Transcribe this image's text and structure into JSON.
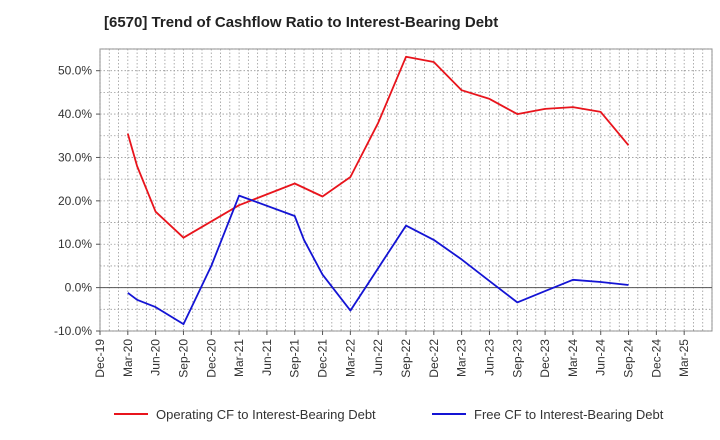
{
  "chart_data": {
    "type": "line",
    "title": "[6570]  Trend of Cashflow Ratio to Interest-Bearing Debt",
    "xlabel": "",
    "ylabel": "",
    "x_tick_labels": [
      "Dec-19",
      "Mar-20",
      "Jun-20",
      "Sep-20",
      "Dec-20",
      "Mar-21",
      "Jun-21",
      "Sep-21",
      "Dec-21",
      "Mar-22",
      "Jun-22",
      "Sep-22",
      "Dec-22",
      "Mar-23",
      "Jun-23",
      "Sep-23",
      "Dec-23",
      "Mar-24",
      "Jun-24",
      "Sep-24",
      "Dec-24",
      "Mar-25"
    ],
    "y_tick_labels": [
      "-10.0%",
      "0.0%",
      "10.0%",
      "20.0%",
      "30.0%",
      "40.0%",
      "50.0%"
    ],
    "ylim": [
      -10,
      55
    ],
    "y_ticks": [
      -10,
      0,
      10,
      20,
      30,
      40,
      50
    ],
    "grid": true,
    "legend_position": "bottom",
    "series": [
      {
        "name": "Operating CF to Interest-Bearing Debt",
        "color": "#e8141c",
        "points": [
          [
            "Mar-20",
            35.5
          ],
          [
            "Apr-20",
            28.0
          ],
          [
            "Jun-20",
            17.5
          ],
          [
            "Sep-20",
            11.5
          ],
          [
            "Mar-21",
            19.0
          ],
          [
            "Sep-21",
            24.0
          ],
          [
            "Dec-21",
            21.0
          ],
          [
            "Mar-22",
            25.5
          ],
          [
            "Jun-22",
            38.0
          ],
          [
            "Sep-22",
            53.2
          ],
          [
            "Dec-22",
            52.0
          ],
          [
            "Mar-23",
            45.5
          ],
          [
            "Jun-23",
            43.5
          ],
          [
            "Sep-23",
            40.0
          ],
          [
            "Dec-23",
            41.2
          ],
          [
            "Mar-24",
            41.6
          ],
          [
            "Jun-24",
            40.5
          ],
          [
            "Sep-24",
            32.8
          ]
        ]
      },
      {
        "name": "Free CF to Interest-Bearing Debt",
        "color": "#1414d4",
        "points": [
          [
            "Mar-20",
            -1.2
          ],
          [
            "Apr-20",
            -2.8
          ],
          [
            "Jun-20",
            -4.5
          ],
          [
            "Sep-20",
            -8.4
          ],
          [
            "Dec-20",
            5.0
          ],
          [
            "Mar-21",
            21.2
          ],
          [
            "Sep-21",
            16.5
          ],
          [
            "Oct-21",
            11.0
          ],
          [
            "Dec-21",
            3.0
          ],
          [
            "Mar-22",
            -5.3
          ],
          [
            "Jun-22",
            4.5
          ],
          [
            "Sep-22",
            14.3
          ],
          [
            "Dec-22",
            11.0
          ],
          [
            "Mar-23",
            6.5
          ],
          [
            "Jun-23",
            1.5
          ],
          [
            "Sep-23",
            -3.4
          ],
          [
            "Dec-23",
            -0.8
          ],
          [
            "Mar-24",
            1.8
          ],
          [
            "Jun-24",
            1.3
          ],
          [
            "Sep-24",
            0.6
          ]
        ]
      }
    ]
  }
}
